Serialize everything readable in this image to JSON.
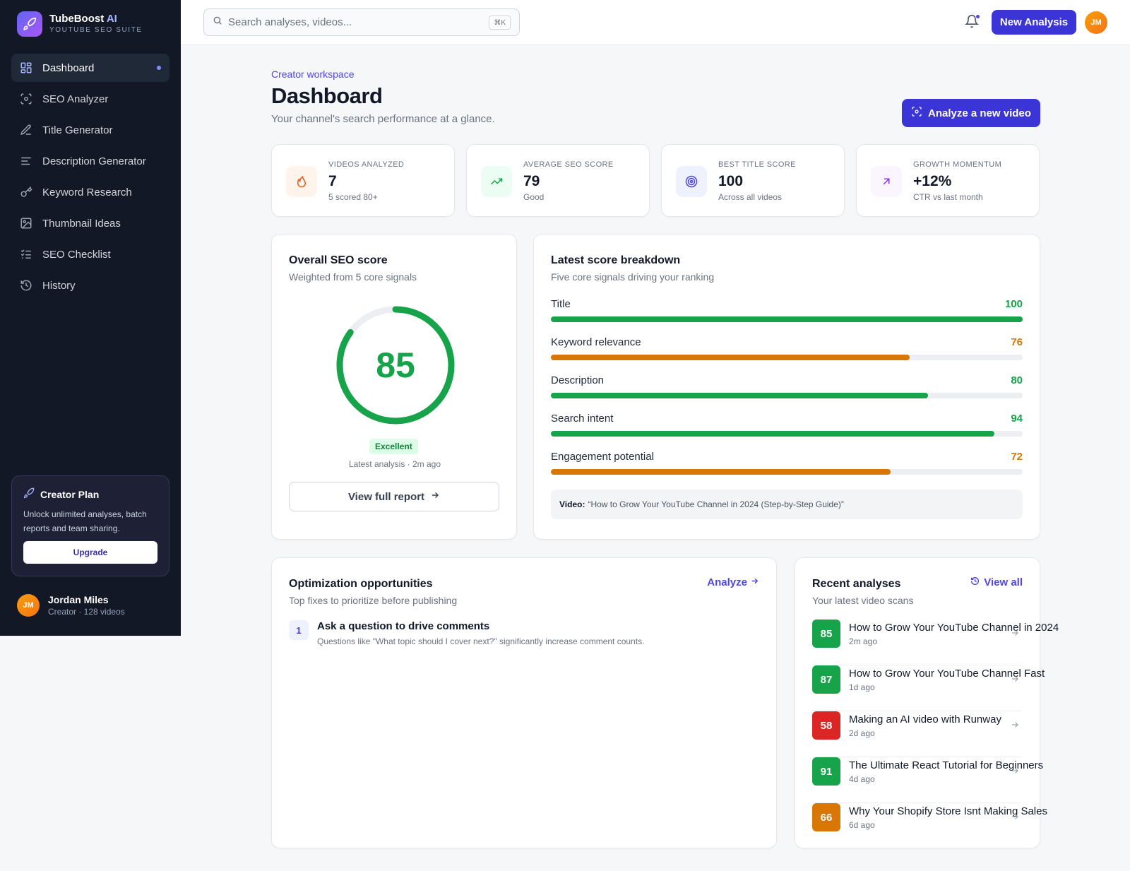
{
  "brand": {
    "name": "TubeBoost",
    "name_accent": "AI",
    "subtitle": "YOUTUBE SEO SUITE"
  },
  "sidebar": {
    "items": [
      {
        "label": "Dashboard",
        "icon": "grid-icon",
        "active": true
      },
      {
        "label": "SEO Analyzer",
        "icon": "scan-icon"
      },
      {
        "label": "Title Generator",
        "icon": "pencil-icon"
      },
      {
        "label": "Description Generator",
        "icon": "lines-icon"
      },
      {
        "label": "Keyword Research",
        "icon": "key-icon"
      },
      {
        "label": "Thumbnail Ideas",
        "icon": "image-icon"
      },
      {
        "label": "SEO Checklist",
        "icon": "checklist-icon"
      },
      {
        "label": "History",
        "icon": "history-icon"
      }
    ],
    "plan": {
      "title": "Creator Plan",
      "text": "Unlock unlimited analyses, batch reports and team sharing.",
      "button": "Upgrade"
    },
    "user": {
      "initials": "JM",
      "name": "Jordan Miles",
      "meta": "Creator · 128 videos"
    }
  },
  "topbar": {
    "search_placeholder": "Search analyses, videos...",
    "shortcut": "⌘K",
    "new_button": "New Analysis",
    "avatar_initials": "JM"
  },
  "header": {
    "eyebrow": "Creator workspace",
    "title": "Dashboard",
    "subtitle": "Your channel's search performance at a glance.",
    "analyze_button": "Analyze a new video"
  },
  "stats": [
    {
      "label": "VIDEOS ANALYZED",
      "value": "7",
      "note": "5 scored 80+",
      "icon": "flame-icon",
      "bg": "#fff4ec",
      "color": "#ea580c"
    },
    {
      "label": "AVERAGE SEO SCORE",
      "value": "79",
      "note": "Good",
      "icon": "trending-up-icon",
      "bg": "#ecfdf3",
      "color": "#16a34a"
    },
    {
      "label": "BEST TITLE SCORE",
      "value": "100",
      "note": "Across all videos",
      "icon": "target-icon",
      "bg": "#eef2ff",
      "color": "#4f46e5"
    },
    {
      "label": "GROWTH MOMENTUM",
      "value": "+12%",
      "note": "CTR vs last month",
      "icon": "arrow-up-right-icon",
      "bg": "#faf5ff",
      "color": "#9333ea"
    }
  ],
  "overall": {
    "title": "Overall SEO score",
    "subtitle": "Weighted from 5 core signals",
    "score": 85,
    "badge": "Excellent",
    "latest": "Latest analysis · 2m ago",
    "button": "View full report"
  },
  "breakdown": {
    "title": "Latest score breakdown",
    "subtitle": "Five core signals driving your ranking",
    "rows": [
      {
        "label": "Title",
        "value": 100,
        "color": "#16a34a"
      },
      {
        "label": "Keyword relevance",
        "value": 76,
        "color": "#d97706"
      },
      {
        "label": "Description",
        "value": 80,
        "color": "#16a34a"
      },
      {
        "label": "Search intent",
        "value": 94,
        "color": "#16a34a"
      },
      {
        "label": "Engagement potential",
        "value": 72,
        "color": "#d97706"
      }
    ],
    "video_label": "Video:",
    "video_title": "“How to Grow Your YouTube Channel in 2024 (Step-by-Step Guide)”"
  },
  "opportunities": {
    "title": "Optimization opportunities",
    "subtitle": "Top fixes to prioritize before publishing",
    "link": "Analyze",
    "items": [
      {
        "num": "1",
        "title": "Ask a question to drive comments",
        "desc": "Questions like \"What topic should I cover next?\" significantly increase comment counts."
      }
    ]
  },
  "recent": {
    "title": "Recent analyses",
    "subtitle": "Your latest video scans",
    "link": "View all",
    "items": [
      {
        "score": "85",
        "title": "How to Grow Your YouTube Channel in 2024",
        "time": "2m ago",
        "color": "#16a34a"
      },
      {
        "score": "87",
        "title": "How to Grow Your YouTube Channel Fast",
        "time": "1d ago",
        "color": "#16a34a"
      },
      {
        "score": "58",
        "title": "Making an AI video with Runway",
        "time": "2d ago",
        "color": "#dc2626"
      },
      {
        "score": "91",
        "title": "The Ultimate React Tutorial for Beginners",
        "time": "4d ago",
        "color": "#16a34a"
      },
      {
        "score": "66",
        "title": "Why Your Shopify Store Isnt Making Sales",
        "time": "6d ago",
        "color": "#d97706"
      }
    ]
  }
}
